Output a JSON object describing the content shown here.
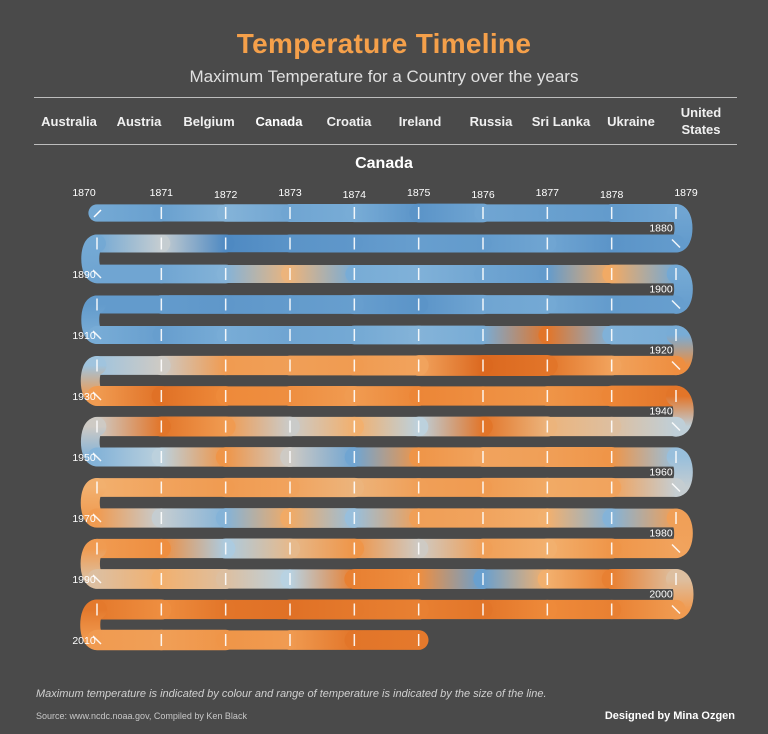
{
  "header": {
    "title": "Temperature Timeline",
    "subtitle": "Maximum Temperature for a Country over the years"
  },
  "country_selector": {
    "items": [
      "Australia",
      "Austria",
      "Belgium",
      "Canada",
      "Croatia",
      "Ireland",
      "Russia",
      "Sri Lanka",
      "Ukraine",
      "United States"
    ],
    "selected": "Canada"
  },
  "footer": {
    "note": "Maximum temperature is indicated by colour and range of temperature is indicated by the size of the line.",
    "source": "Source: www.ncdc.noaa.gov,   Compiled by Ken Black",
    "designer": "Designed by Mina Ozgen"
  },
  "colors": {
    "background": "#4a4a4a",
    "title": "#f5a04a",
    "cold": "#4a86c0",
    "cool": "#a9cfe8",
    "neutral": "#c9ced2",
    "warm": "#f5a857",
    "hot": "#e06a1c"
  },
  "chart_data": {
    "type": "line",
    "title": "Canada",
    "encoding": "colour = maximum temperature (blue cooler, orange hotter); line width = temperature range",
    "start_year": 1870,
    "end_year": 2015,
    "row_labels": [
      "1870",
      "1890",
      "1910",
      "1930",
      "1950",
      "1970",
      "1990",
      "2010"
    ],
    "turn_labels": [
      "1880",
      "1900",
      "1920",
      "1940",
      "1960",
      "1980",
      "2000"
    ],
    "top_tick_labels": [
      "1871",
      "1872",
      "1873",
      "1874",
      "1875",
      "1876",
      "1877",
      "1878",
      "1879"
    ],
    "temp_scale": "relative 0 (coolest) to 1 (hottest)",
    "years": [
      1870,
      1871,
      1872,
      1873,
      1874,
      1875,
      1876,
      1877,
      1878,
      1879,
      1880,
      1881,
      1882,
      1883,
      1884,
      1885,
      1886,
      1887,
      1888,
      1889,
      1890,
      1891,
      1892,
      1893,
      1894,
      1895,
      1896,
      1897,
      1898,
      1899,
      1900,
      1901,
      1902,
      1903,
      1904,
      1905,
      1906,
      1907,
      1908,
      1909,
      1910,
      1911,
      1912,
      1913,
      1914,
      1915,
      1916,
      1917,
      1918,
      1919,
      1920,
      1921,
      1922,
      1923,
      1924,
      1925,
      1926,
      1927,
      1928,
      1929,
      1930,
      1931,
      1932,
      1933,
      1934,
      1935,
      1936,
      1937,
      1938,
      1939,
      1940,
      1941,
      1942,
      1943,
      1944,
      1945,
      1946,
      1947,
      1948,
      1949,
      1950,
      1951,
      1952,
      1953,
      1954,
      1955,
      1956,
      1957,
      1958,
      1959,
      1960,
      1961,
      1962,
      1963,
      1964,
      1965,
      1966,
      1967,
      1968,
      1969,
      1970,
      1971,
      1972,
      1973,
      1974,
      1975,
      1976,
      1977,
      1978,
      1979,
      1980,
      1981,
      1982,
      1983,
      1984,
      1985,
      1986,
      1987,
      1988,
      1989,
      1990,
      1991,
      1992,
      1993,
      1994,
      1995,
      1996,
      1997,
      1998,
      1999,
      2000,
      2001,
      2002,
      2003,
      2004,
      2005,
      2006,
      2007,
      2008,
      2009,
      2010,
      2011,
      2012,
      2013,
      2014,
      2015
    ],
    "values": [
      0.2,
      0.15,
      0.25,
      0.18,
      0.22,
      0.08,
      0.18,
      0.15,
      0.12,
      0.18,
      0.12,
      0.08,
      0.18,
      0.12,
      0.14,
      0.1,
      0.08,
      0.02,
      0.45,
      0.2,
      0.18,
      0.18,
      0.25,
      0.6,
      0.22,
      0.24,
      0.18,
      0.12,
      0.65,
      0.2,
      0.14,
      0.12,
      0.2,
      0.18,
      0.08,
      0.14,
      0.12,
      0.1,
      0.12,
      0.12,
      0.22,
      0.14,
      0.22,
      0.18,
      0.2,
      0.25,
      0.22,
      0.9,
      0.24,
      0.22,
      0.78,
      0.68,
      0.9,
      0.96,
      0.68,
      0.72,
      0.7,
      0.72,
      0.5,
      0.32,
      0.72,
      0.92,
      0.8,
      0.78,
      0.72,
      0.82,
      0.78,
      0.75,
      0.82,
      0.9,
      0.42,
      0.55,
      0.6,
      0.9,
      0.4,
      0.62,
      0.48,
      0.72,
      0.9,
      0.5,
      0.25,
      0.4,
      0.75,
      0.5,
      0.18,
      0.75,
      0.68,
      0.7,
      0.75,
      0.3,
      0.45,
      0.68,
      0.65,
      0.72,
      0.7,
      0.6,
      0.68,
      0.72,
      0.68,
      0.62,
      0.72,
      0.45,
      0.25,
      0.65,
      0.3,
      0.7,
      0.68,
      0.62,
      0.25,
      0.7,
      0.68,
      0.75,
      0.62,
      0.7,
      0.5,
      0.75,
      0.58,
      0.35,
      0.78,
      0.72,
      0.55,
      0.62,
      0.55,
      0.38,
      0.85,
      0.78,
      0.15,
      0.62,
      0.85,
      0.55,
      0.72,
      0.85,
      0.8,
      0.9,
      0.85,
      0.88,
      0.92,
      0.9,
      0.78,
      0.88,
      0.72,
      0.7,
      0.75,
      0.72,
      0.9,
      0.88
    ],
    "ranges": [
      0.35,
      0.4,
      0.3,
      0.5,
      0.35,
      0.55,
      0.4,
      0.35,
      0.4,
      0.45,
      0.4,
      0.45,
      0.4,
      0.45,
      0.4,
      0.45,
      0.4,
      0.4,
      0.45,
      0.4,
      0.45,
      0.5,
      0.45,
      0.4,
      0.45,
      0.4,
      0.45,
      0.4,
      0.45,
      0.5,
      0.45,
      0.4,
      0.45,
      0.5,
      0.55,
      0.5,
      0.45,
      0.5,
      0.45,
      0.4,
      0.45,
      0.4,
      0.45,
      0.4,
      0.45,
      0.5,
      0.45,
      0.4,
      0.45,
      0.5,
      0.55,
      0.5,
      0.6,
      0.7,
      0.55,
      0.6,
      0.5,
      0.55,
      0.5,
      0.45,
      0.55,
      0.6,
      0.5,
      0.55,
      0.6,
      0.5,
      0.55,
      0.5,
      0.6,
      0.65,
      0.55,
      0.5,
      0.55,
      0.6,
      0.5,
      0.55,
      0.5,
      0.6,
      0.55,
      0.5,
      0.45,
      0.55,
      0.5,
      0.6,
      0.5,
      0.55,
      0.5,
      0.6,
      0.55,
      0.5,
      0.45,
      0.5,
      0.55,
      0.5,
      0.45,
      0.5,
      0.55,
      0.5,
      0.45,
      0.5,
      0.5,
      0.55,
      0.5,
      0.6,
      0.5,
      0.55,
      0.5,
      0.55,
      0.5,
      0.45,
      0.5,
      0.55,
      0.6,
      0.5,
      0.55,
      0.5,
      0.6,
      0.55,
      0.5,
      0.55,
      0.5,
      0.6,
      0.55,
      0.5,
      0.55,
      0.6,
      0.55,
      0.5,
      0.55,
      0.6,
      0.55,
      0.5,
      0.55,
      0.5,
      0.55,
      0.6,
      0.55,
      0.5,
      0.55,
      0.6,
      0.55,
      0.65,
      0.55,
      0.5,
      0.6,
      0.5
    ]
  }
}
